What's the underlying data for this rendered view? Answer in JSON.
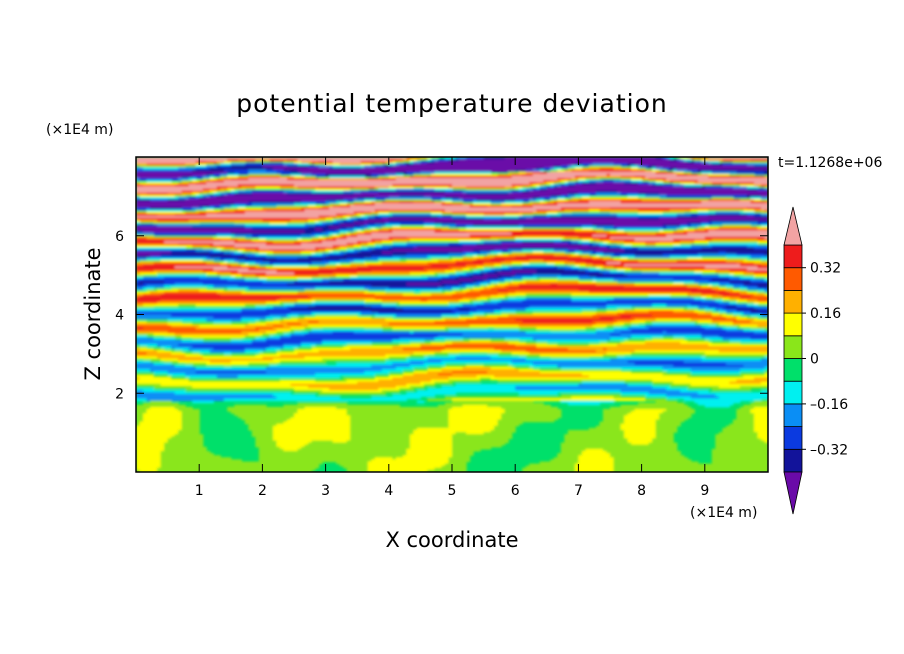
{
  "chart_data": {
    "type": "heatmap",
    "title": "potential temperature deviation",
    "xlabel": "X coordinate",
    "ylabel": "Z coordinate",
    "x_unit": "(×1E4 m)",
    "y_unit": "(×1E4 m)",
    "time_label": "t=1.1268e+06",
    "xlim": [
      0,
      10
    ],
    "ylim": [
      0,
      8
    ],
    "x_ticks": [
      1,
      2,
      3,
      4,
      5,
      6,
      7,
      8,
      9
    ],
    "y_ticks": [
      2,
      4,
      6
    ],
    "x_tick_labels": [
      "1",
      "2",
      "3",
      "4",
      "5",
      "6",
      "7",
      "8",
      "9"
    ],
    "y_tick_labels": [
      "2",
      "4",
      "6"
    ],
    "colorbar": {
      "levels": [
        -0.4,
        -0.32,
        -0.24,
        -0.16,
        -0.08,
        0,
        0.08,
        0.16,
        0.24,
        0.32,
        0.4
      ],
      "labels": [
        "0.32",
        "0.16",
        "0",
        "–0.16",
        "–0.32"
      ],
      "label_values": [
        0.32,
        0.16,
        0,
        -0.16,
        -0.32
      ],
      "colors": [
        "#6a0aa8",
        "#12139a",
        "#0b3ae0",
        "#0a8ef5",
        "#00f0f0",
        "#00e06a",
        "#8ae61a",
        "#ffff00",
        "#ffb000",
        "#ff5a00",
        "#ee1c1c",
        "#f2a3a3"
      ],
      "extend": "both"
    },
    "notes": "Filled contour field: near-neutral turbulent layer below z≈2, horizontally stratified oscillating bands (amplitude increasing with height) above."
  }
}
